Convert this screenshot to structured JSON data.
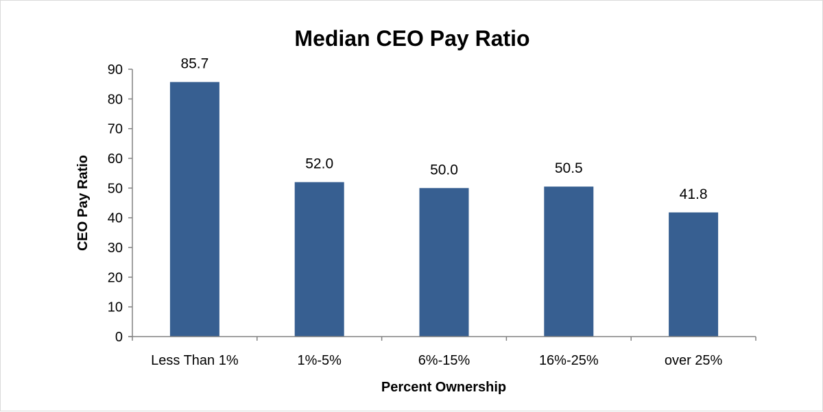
{
  "chart_data": {
    "type": "bar",
    "title": "Median CEO Pay Ratio",
    "xlabel": "Percent Ownership",
    "ylabel": "CEO Pay Ratio",
    "categories": [
      "Less Than 1%",
      "1%-5%",
      "6%-15%",
      "16%-25%",
      "over 25%"
    ],
    "values": [
      85.7,
      52.0,
      50.0,
      50.5,
      41.8
    ],
    "data_labels": [
      "85.7",
      "52.0",
      "50.0",
      "50.5",
      "41.8"
    ],
    "ylim": [
      0,
      90
    ],
    "yticks": [
      0,
      10,
      20,
      30,
      40,
      50,
      60,
      70,
      80,
      90
    ],
    "grid": false,
    "legend": "none",
    "colors": {
      "bar": "#375F91",
      "axis": "#808080"
    }
  }
}
